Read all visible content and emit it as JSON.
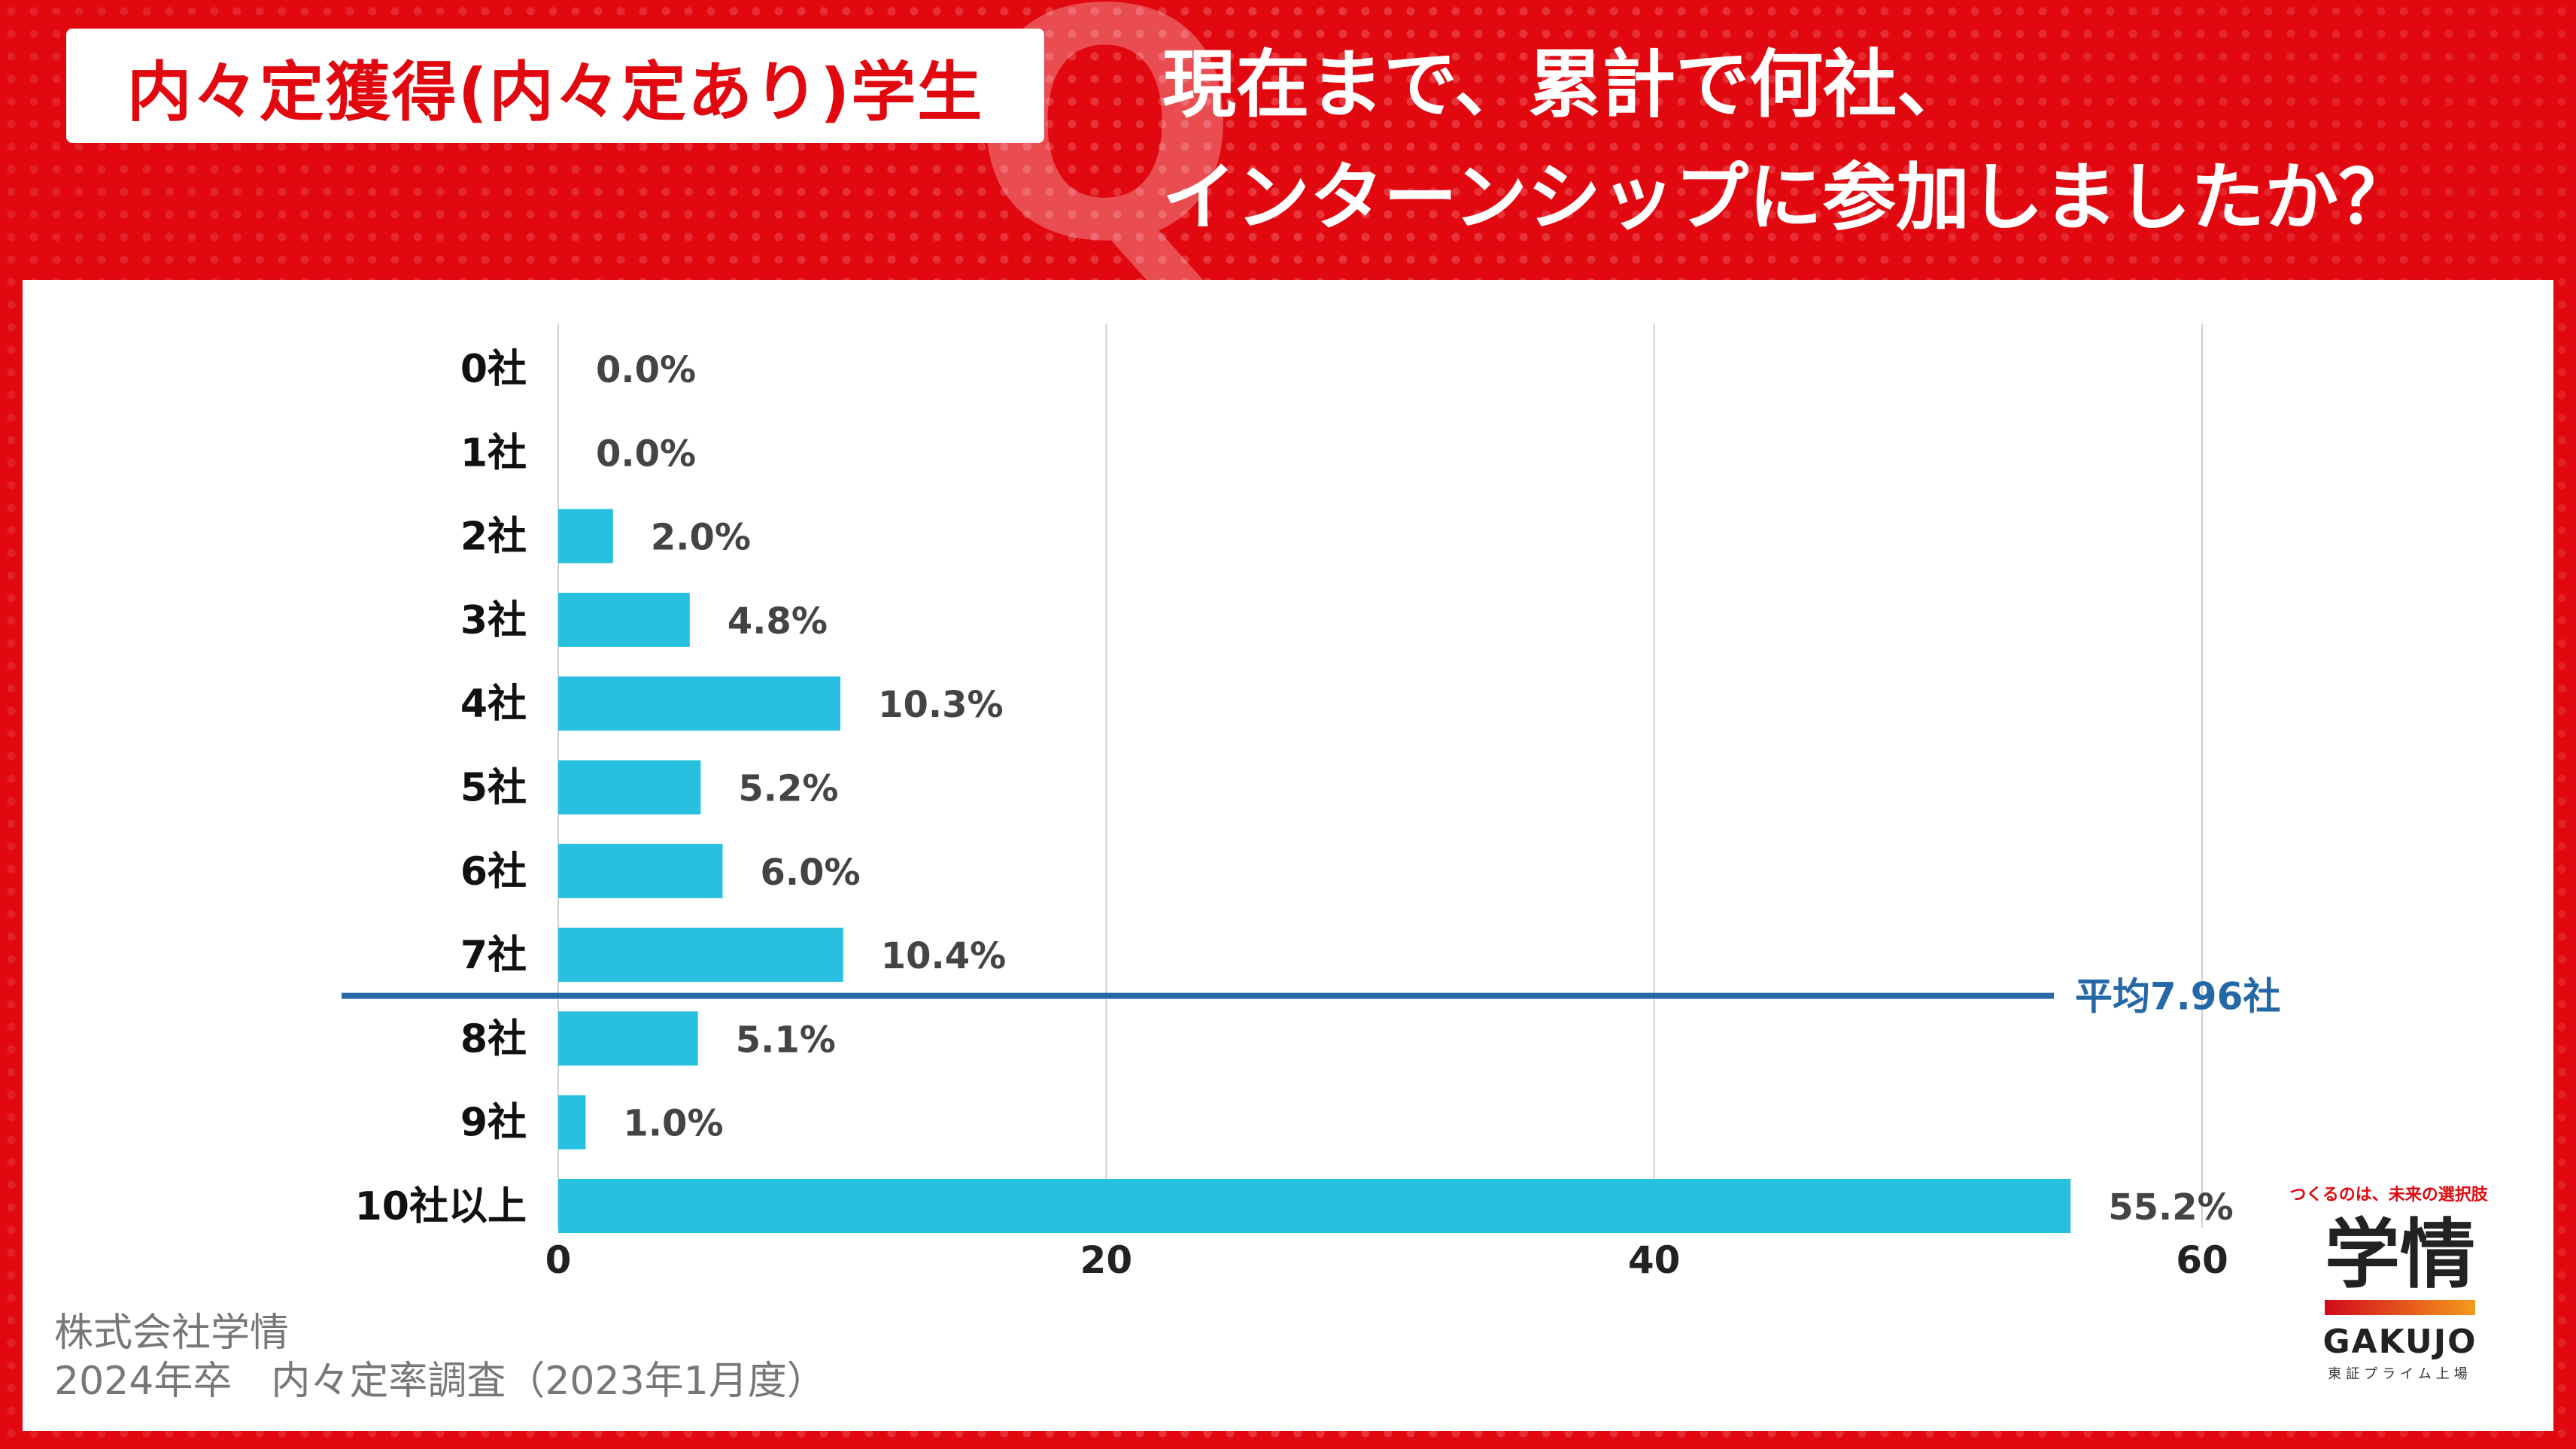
{
  "header": {
    "tag": "内々定獲得(内々定あり)学生",
    "q_mark": "Q",
    "question_line1": "現在まで、累計で何社、",
    "question_line2": "インターンシップに参加しましたか？"
  },
  "colors": {
    "brand_red": "#e1080f",
    "bar": "#29c0df",
    "average_line": "#2468a6",
    "grid": "#cfcfcf"
  },
  "chart_data": {
    "type": "bar",
    "orientation": "horizontal",
    "categories": [
      "0社",
      "1社",
      "2社",
      "3社",
      "4社",
      "5社",
      "6社",
      "7社",
      "8社",
      "9社",
      "10社以上"
    ],
    "values": [
      0.0,
      0.0,
      2.0,
      4.8,
      10.3,
      5.2,
      6.0,
      10.4,
      5.1,
      1.0,
      55.2
    ],
    "value_labels": [
      "0.0%",
      "0.0%",
      "2.0%",
      "4.8%",
      "10.3%",
      "5.2%",
      "6.0%",
      "10.4%",
      "5.1%",
      "1.0%",
      "55.2%"
    ],
    "x_ticks": [
      "0",
      "20",
      "40",
      "60"
    ],
    "xlim": [
      0,
      60
    ],
    "grid": true,
    "average": {
      "label": "平均7.96社",
      "value": 7.96
    }
  },
  "footer": {
    "source_line1": "株式会社学情",
    "source_line2": "2024年卒　内々定率調査（2023年1月度）"
  },
  "logo": {
    "tagline": "つくるのは、未来の選択肢",
    "kanji": "学情",
    "english": "GAKUJO",
    "sub": "東証プライム上場"
  }
}
